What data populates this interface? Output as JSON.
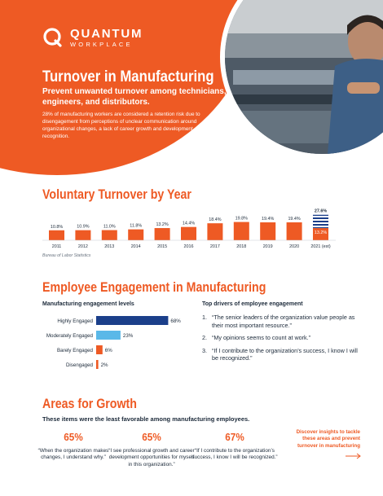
{
  "brand": {
    "name": "QUANTUM",
    "sub": "WORKPLACE"
  },
  "hero": {
    "title": "Turnover in Manufacturing",
    "subtitle": "Prevent unwanted turnover among technicians, engineers, and distributors.",
    "body": "28% of manufacturing workers are considered a retention risk due to disengagement from perceptions of unclear communication around organizational changes, a lack of career growth and development, and scarce recognition."
  },
  "colors": {
    "accent": "#ee5a24",
    "navy": "#1b3f8a",
    "sky": "#5ab8e8",
    "text": "#1c2a3a"
  },
  "voluntary_turnover": {
    "title": "Voluntary Turnover by Year",
    "source": "Bureau of Labor Statistics"
  },
  "engagement": {
    "title": "Employee Engagement in Manufacturing",
    "levels_heading": "Manufacturing engagement levels",
    "drivers_heading": "Top drivers of employee engagement",
    "drivers": [
      {
        "num": "1.",
        "text": "“The senior leaders of the organization value people as their most important resource.”"
      },
      {
        "num": "2.",
        "text": "“My opinions seems to count at work.”"
      },
      {
        "num": "3.",
        "text": "“If I contribute to the organization’s success, I know I will be recognized.”"
      }
    ]
  },
  "areas": {
    "title": "Areas for Growth",
    "subtitle": "These items were the least favorable among manufacturing employees.",
    "items": [
      {
        "pct": "65%",
        "quote": "“When the organization makes changes, I understand why.”"
      },
      {
        "pct": "65%",
        "quote": "“I see professional growth and career development opportunities for myself in this organization.”"
      },
      {
        "pct": "67%",
        "quote": "“If I contribute to the organization’s success, I know I will be recognized.”"
      }
    ],
    "cta": "Discover insights to tackle these areas and prevent turnover in manufacturing"
  },
  "chart_data": [
    {
      "type": "bar",
      "categories": [
        "2011",
        "2012",
        "2013",
        "2014",
        "2015",
        "2016",
        "2017",
        "2018",
        "2019",
        "2020",
        "2021 (est)"
      ],
      "values": [
        10.8,
        10.9,
        11.0,
        11.8,
        13.2,
        14.4,
        18.4,
        19.8,
        19.4,
        19.4,
        13.2
      ],
      "labels": [
        "10.8%",
        "10.9%",
        "11.0%",
        "11.8%",
        "13.2%",
        "14.4%",
        "18.4%",
        "19.8%",
        "19.4%",
        "19.4%",
        "13.2%"
      ],
      "estimate_total": 27.6,
      "estimate_total_label": "27.6%",
      "ylim": [
        0,
        30
      ],
      "grid": false
    },
    {
      "type": "bar",
      "orientation": "horizontal",
      "categories": [
        "Highly Engaged",
        "Moderately Engaged",
        "Barely Engaged",
        "Disengaged"
      ],
      "values": [
        68,
        23,
        6,
        2
      ],
      "labels": [
        "68%",
        "23%",
        "6%",
        "2%"
      ],
      "colors": [
        "#1b3f8a",
        "#5ab8e8",
        "#ee5a24",
        "#ee5a24"
      ],
      "xlim": [
        0,
        100
      ],
      "grid": false
    }
  ]
}
